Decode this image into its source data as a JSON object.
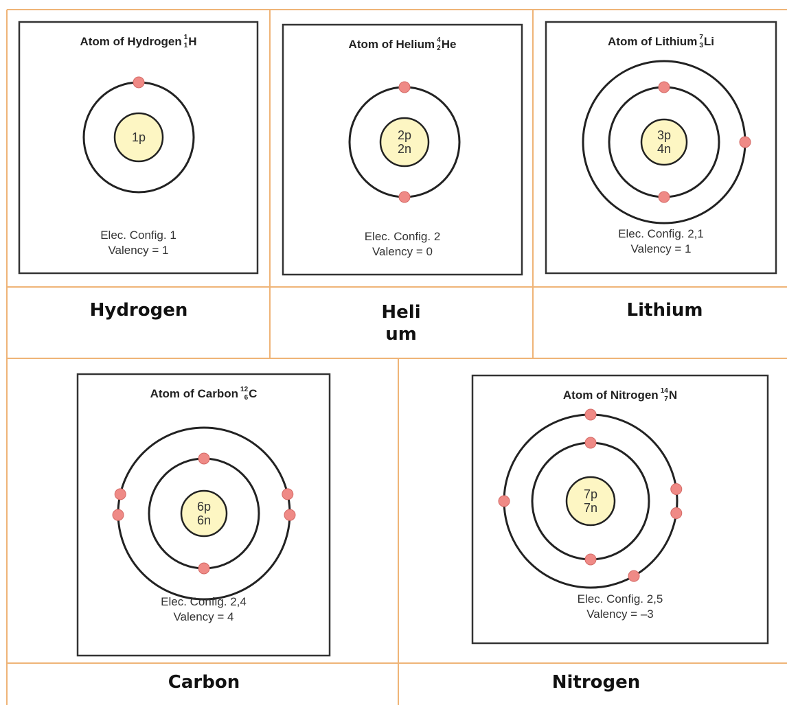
{
  "table": {
    "cells": [
      {
        "atom": {
          "title": "Atom of Hydrogen",
          "mass": "1",
          "number": "1",
          "symbol": "H",
          "nucleus": [
            "1p"
          ],
          "config": "Elec. Config. 1",
          "valency": "Valency = 1"
        },
        "name": "Hydrogen"
      },
      {
        "atom": {
          "title": "Atom of Helium",
          "mass": "4",
          "number": "2",
          "symbol": "He",
          "nucleus": [
            "2p",
            "2n"
          ],
          "config": "Elec. Config. 2",
          "valency": "Valency = 0"
        },
        "name": "Helium"
      },
      {
        "atom": {
          "title": "Atom of Lithium",
          "mass": "7",
          "number": "3",
          "symbol": "Li",
          "nucleus": [
            "3p",
            "4n"
          ],
          "config": "Elec. Config. 2,1",
          "valency": "Valency = 1"
        },
        "name": "Lithium"
      },
      {
        "atom": {
          "title": "Atom of Carbon",
          "mass": "12",
          "number": "6",
          "symbol": "C",
          "nucleus": [
            "6p",
            "6n"
          ],
          "config": "Elec. Config. 2,4",
          "valency": "Valency = 4"
        },
        "name": "Carbon"
      },
      {
        "atom": {
          "title": "Atom of Nitrogen",
          "mass": "14",
          "number": "7",
          "symbol": "N",
          "nucleus": [
            "7p",
            "7n"
          ],
          "config": "Elec. Config. 2,5",
          "valency": "Valency = –3"
        },
        "name": "Nitrogen"
      }
    ]
  }
}
